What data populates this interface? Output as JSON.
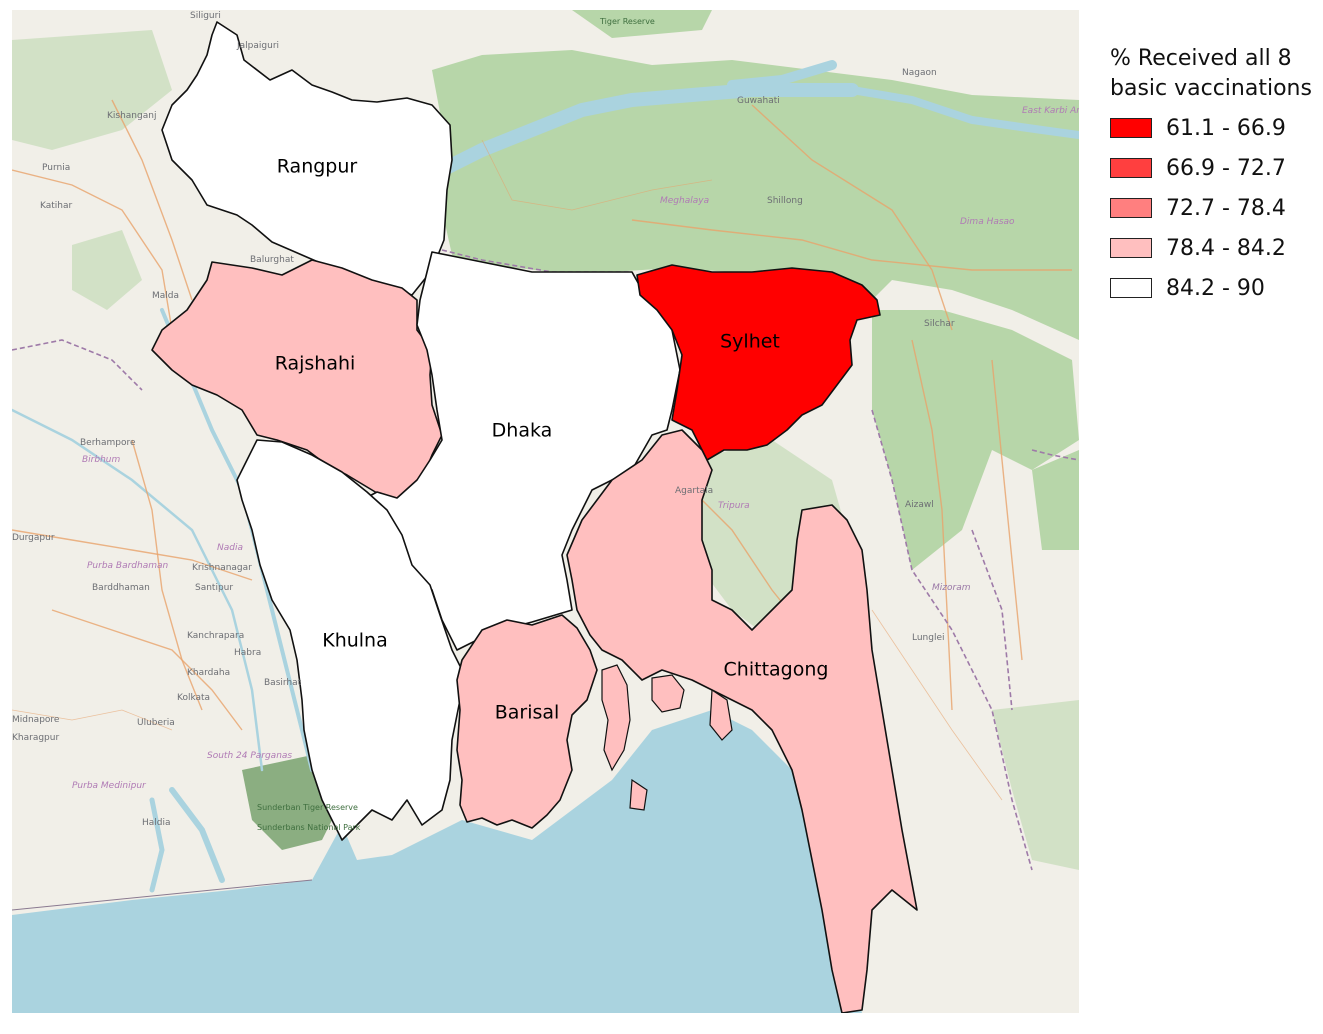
{
  "legend": {
    "title_line1": "% Received all 8",
    "title_line2": "basic vaccinations",
    "classes": [
      {
        "label": "61.1 - 66.9",
        "color": "#ff0000"
      },
      {
        "label": "66.9 - 72.7",
        "color": "#ff3f3f"
      },
      {
        "label": "72.7 - 78.4",
        "color": "#ff7f7f"
      },
      {
        "label": "78.4 - 84.2",
        "color": "#ffbfbf"
      },
      {
        "label": "84.2 - 90",
        "color": "#ffffff"
      }
    ]
  },
  "regions": {
    "rangpur": {
      "name": "Rangpur",
      "color": "#ffffff"
    },
    "rajshahi": {
      "name": "Rajshahi",
      "color": "#ffbfbf"
    },
    "dhaka": {
      "name": "Dhaka",
      "color": "#ffffff"
    },
    "sylhet": {
      "name": "Sylhet",
      "color": "#ff0000"
    },
    "khulna": {
      "name": "Khulna",
      "color": "#ffffff"
    },
    "barisal": {
      "name": "Barisal",
      "color": "#ffbfbf"
    },
    "chittagong": {
      "name": "Chittagong",
      "color": "#ffbfbf"
    }
  },
  "basemap": {
    "colors": {
      "land": "#f1efe8",
      "water": "#aad3df",
      "forest": "#add19e",
      "road": "#e8a26a",
      "border": "#9e7aa8"
    },
    "places": {
      "siliguri": "Siliguri",
      "jalpaiguri": "Jalpaiguri",
      "kishanganj": "Kishanganj",
      "purnia": "Purnia",
      "katihar": "Katihar",
      "malda": "Malda",
      "balurghat": "Balurghat",
      "guwahati": "Guwahati",
      "nagaon": "Nagaon",
      "shillong": "Shillong",
      "meghalaya": "Meghalaya",
      "dima_hasao": "Dima Hasao",
      "east_karbi": "East Karbi Anglong",
      "silchar": "Silchar",
      "aizawl": "Aizawl",
      "mizoram": "Mizoram",
      "lunglei": "Lunglei",
      "tripura": "Tripura",
      "agartala": "Agartala",
      "berhampore": "Berhampore",
      "birbhum": "Birbhum",
      "durgapur": "Durgapur",
      "purba_bardhaman": "Purba Bardhaman",
      "barddhaman": "Barddhaman",
      "krishnanagar": "Krishnanagar",
      "nadia": "Nadia",
      "santipur": "Santipur",
      "kanchrapara": "Kanchrapara",
      "habra": "Habra",
      "khardaha": "Khardaha",
      "kolkata": "Kolkata",
      "basirhat": "Basirhat",
      "uluberia": "Uluberia",
      "medinipur": "Midnapore",
      "kharagpur": "Kharagpur",
      "south_24": "South 24 Parganas",
      "purba_medinipur": "Purba Medinipur",
      "haldia": "Haldia",
      "sunderban": "Sunderban Tiger Reserve",
      "sunderban_np": "Sunderbans National Park",
      "tiger_reserve": "Tiger Reserve"
    }
  }
}
